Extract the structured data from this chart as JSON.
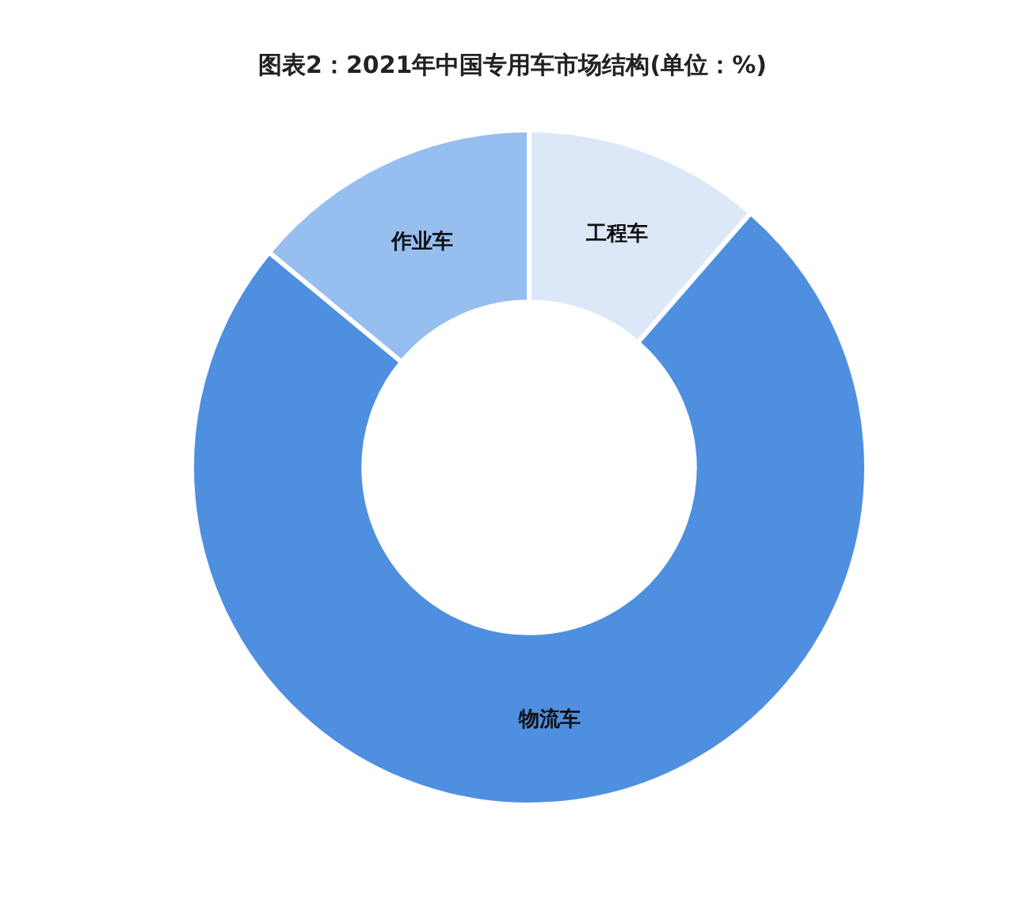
{
  "chart_data": {
    "type": "donut",
    "title": "图表2：2021年中国专用车市场结构(单位：%)",
    "categories": [
      "工程车",
      "物流车",
      "作业车"
    ],
    "values": [
      11.4,
      74.6,
      14.0
    ],
    "colors": [
      "#dce8f8",
      "#4f8fe0",
      "#96bff0"
    ]
  }
}
